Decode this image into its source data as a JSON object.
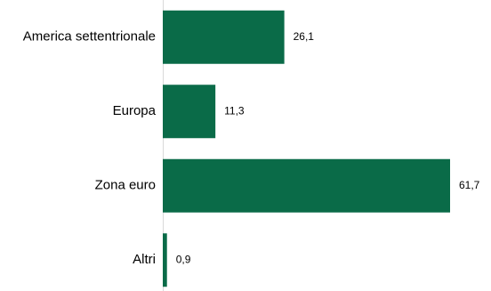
{
  "chart_data": {
    "type": "bar",
    "orientation": "horizontal",
    "categories": [
      "America settentrionale",
      "Europa",
      "Zona euro",
      "Altri"
    ],
    "values": [
      26.1,
      11.3,
      61.7,
      0.9
    ],
    "value_labels": [
      "26,1",
      "11,3",
      "61,7",
      "0,9"
    ],
    "title": "",
    "xlabel": "",
    "ylabel": "",
    "xlim": [
      0,
      61.7
    ],
    "grid": false,
    "legend": "none",
    "bar_color": "#0a6b48",
    "axis_color": "#d9d9d9"
  }
}
